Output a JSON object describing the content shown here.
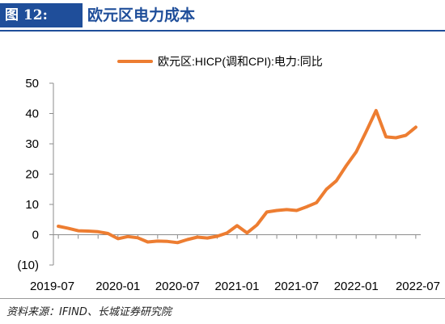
{
  "figure": {
    "label": "图 12:",
    "title": "欧元区电力成本",
    "source": "资料来源：IFIND、长城证券研究院"
  },
  "colors": {
    "accent": "#1f4e9a",
    "series": "#ed7d31",
    "axis": "#8c8c8c",
    "text": "#000000"
  },
  "chart_data": {
    "type": "line",
    "legend_position": "top",
    "grid": false,
    "ylim": [
      -10,
      50
    ],
    "yticks": [
      50,
      40,
      30,
      20,
      10,
      0,
      -10
    ],
    "ytick_labels": [
      "50",
      "40",
      "30",
      "20",
      "10",
      "0",
      "(10)"
    ],
    "xtick_labels": [
      "2019-07",
      "2020-01",
      "2020-07",
      "2021-01",
      "2021-07",
      "2022-01",
      "2022-07"
    ],
    "x": [
      "2019-07",
      "2019-08",
      "2019-09",
      "2019-10",
      "2019-11",
      "2019-12",
      "2020-01",
      "2020-02",
      "2020-03",
      "2020-04",
      "2020-05",
      "2020-06",
      "2020-07",
      "2020-08",
      "2020-09",
      "2020-10",
      "2020-11",
      "2020-12",
      "2021-01",
      "2021-02",
      "2021-03",
      "2021-04",
      "2021-05",
      "2021-06",
      "2021-07",
      "2021-08",
      "2021-09",
      "2021-10",
      "2021-11",
      "2021-12",
      "2022-01",
      "2022-02",
      "2022-03",
      "2022-04",
      "2022-05",
      "2022-06",
      "2022-07"
    ],
    "series": [
      {
        "name": "欧元区:HICP(调和CPI):电力:同比",
        "values": [
          2.8,
          2.1,
          1.3,
          1.2,
          1.0,
          0.4,
          -1.3,
          -0.6,
          -1.0,
          -2.4,
          -2.1,
          -2.2,
          -2.6,
          -1.6,
          -0.8,
          -1.1,
          -0.5,
          0.6,
          3.0,
          0.6,
          3.2,
          7.5,
          8.0,
          8.3,
          8.0,
          9.2,
          10.6,
          15.0,
          17.8,
          22.8,
          27.3,
          34.0,
          41.0,
          32.3,
          32.0,
          32.8,
          35.5
        ]
      }
    ]
  }
}
